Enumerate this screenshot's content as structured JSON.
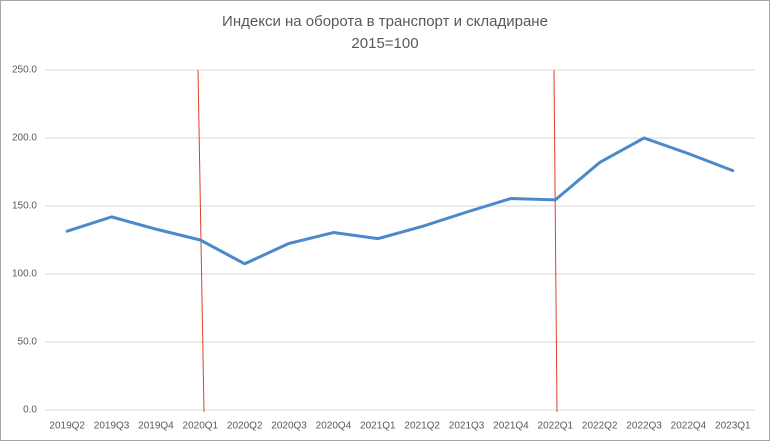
{
  "chart_data": {
    "type": "line",
    "title": "Индекси на оборота в транспорт и складиране",
    "subtitle": "2015=100",
    "categories": [
      "2019Q2",
      "2019Q3",
      "2019Q4",
      "2020Q1",
      "2020Q2",
      "2020Q3",
      "2020Q4",
      "2021Q1",
      "2021Q2",
      "2021Q3",
      "2021Q4",
      "2022Q1",
      "2022Q2",
      "2022Q3",
      "2022Q4",
      "2023Q1"
    ],
    "series": [
      {
        "color": "#4a8ac9",
        "values": [
          131.5,
          142,
          133,
          125,
          107.5,
          122.5,
          130.5,
          126,
          135,
          145.5,
          155.5,
          154.5,
          182,
          200,
          188.5,
          176
        ]
      }
    ],
    "ylim": [
      0,
      250
    ],
    "yticks": [
      {
        "value": 0,
        "label": "0.0"
      },
      {
        "value": 50,
        "label": "50.0"
      },
      {
        "value": 100,
        "label": "100.0"
      },
      {
        "value": 150,
        "label": "150.0"
      },
      {
        "value": 200,
        "label": "200.0"
      },
      {
        "value": 250,
        "label": "250.0"
      }
    ],
    "grid": true
  }
}
